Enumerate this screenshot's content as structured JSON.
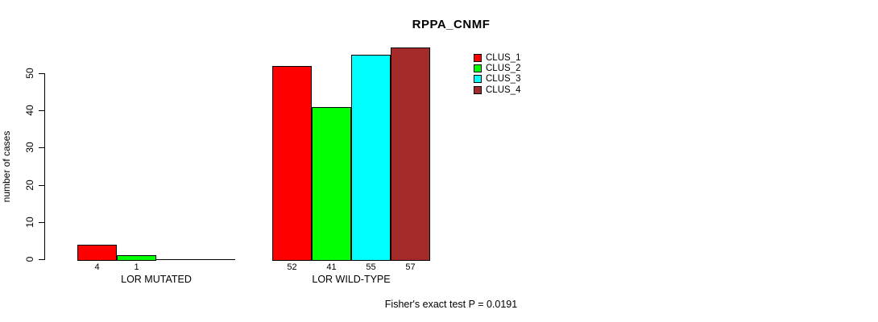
{
  "title": "RPPA_CNMF",
  "y_axis": {
    "label": "number of cases",
    "ticks": [
      "0",
      "10",
      "20",
      "30",
      "40",
      "50"
    ]
  },
  "footer": "Fisher's exact test P = 0.0191",
  "legend": {
    "items": [
      {
        "label": "CLUS_1",
        "color": "#ff0000"
      },
      {
        "label": "CLUS_2",
        "color": "#00ff00"
      },
      {
        "label": "CLUS_3",
        "color": "#00ffff"
      },
      {
        "label": "CLUS_4",
        "color": "#a52a2a"
      }
    ]
  },
  "chart_data": {
    "type": "bar",
    "title": "RPPA_CNMF",
    "xlabel": "",
    "ylabel": "number of cases",
    "categories": [
      "LOR MUTATED",
      "LOR WILD-TYPE"
    ],
    "series": [
      {
        "name": "CLUS_1",
        "color": "#ff0000",
        "values": [
          4,
          52
        ]
      },
      {
        "name": "CLUS_2",
        "color": "#00ff00",
        "values": [
          1,
          41
        ]
      },
      {
        "name": "CLUS_3",
        "color": "#00ffff",
        "values": [
          0,
          55
        ]
      },
      {
        "name": "CLUS_4",
        "color": "#a52a2a",
        "values": [
          0,
          57
        ]
      }
    ],
    "bar_value_labels": [
      [
        "4",
        "1",
        "",
        ""
      ],
      [
        "52",
        "41",
        "55",
        "57"
      ]
    ],
    "ylim": [
      0,
      57.8
    ],
    "yticks": [
      0,
      10,
      20,
      30,
      40,
      50
    ],
    "grid": false,
    "legend_position": "top-right",
    "annotation": "Fisher's exact test P = 0.0191"
  }
}
